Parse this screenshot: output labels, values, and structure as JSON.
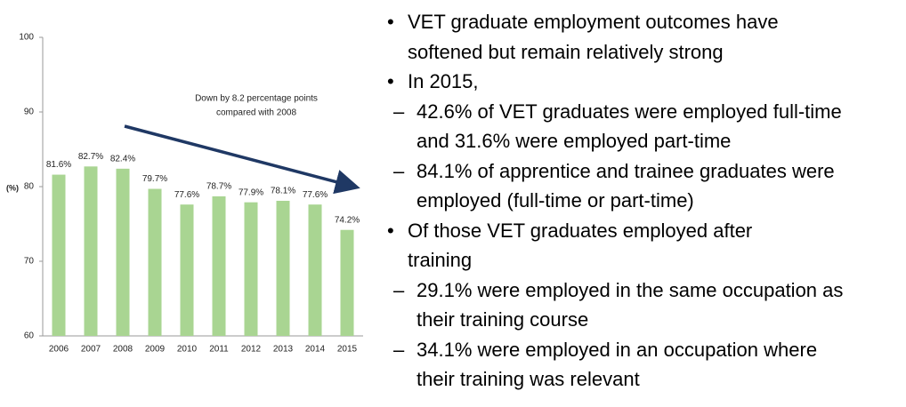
{
  "chart_data": {
    "type": "bar",
    "annotation": [
      "Down by 8.2 percentage points",
      "compared with 2008"
    ],
    "y_label": "(%)",
    "categories": [
      "2006",
      "2007",
      "2008",
      "2009",
      "2010",
      "2011",
      "2012",
      "2013",
      "2014",
      "2015"
    ],
    "values": [
      81.6,
      82.7,
      82.4,
      79.7,
      77.6,
      78.7,
      77.9,
      78.1,
      77.6,
      74.2
    ],
    "value_labels": [
      "81.6%",
      "82.7%",
      "82.4%",
      "79.7%",
      "77.6%",
      "78.7%",
      "77.9%",
      "78.1%",
      "77.6%",
      "74.2%"
    ],
    "color": "#a9d592",
    "ylim": [
      60,
      100
    ],
    "yticks": [
      60,
      70,
      80,
      90,
      100
    ],
    "grid": false
  },
  "bullets": [
    {
      "level": 1,
      "lines": [
        "VET graduate employment outcomes have",
        "softened but remain relatively strong"
      ]
    },
    {
      "level": 1,
      "lines": [
        "In 2015,"
      ]
    },
    {
      "level": 2,
      "lines": [
        "42.6% of VET graduates were employed full-time",
        "and 31.6% were employed part-time"
      ]
    },
    {
      "level": 2,
      "lines": [
        "84.1% of apprentice and trainee graduates were",
        "employed (full-time or part-time)"
      ]
    },
    {
      "level": 1,
      "lines": [
        "Of those VET graduates employed after",
        "training"
      ]
    },
    {
      "level": 2,
      "lines": [
        "29.1% were employed in the same occupation as",
        "their training course"
      ]
    },
    {
      "level": 2,
      "lines": [
        "34.1% were employed in an occupation where",
        "their training was relevant"
      ]
    }
  ]
}
